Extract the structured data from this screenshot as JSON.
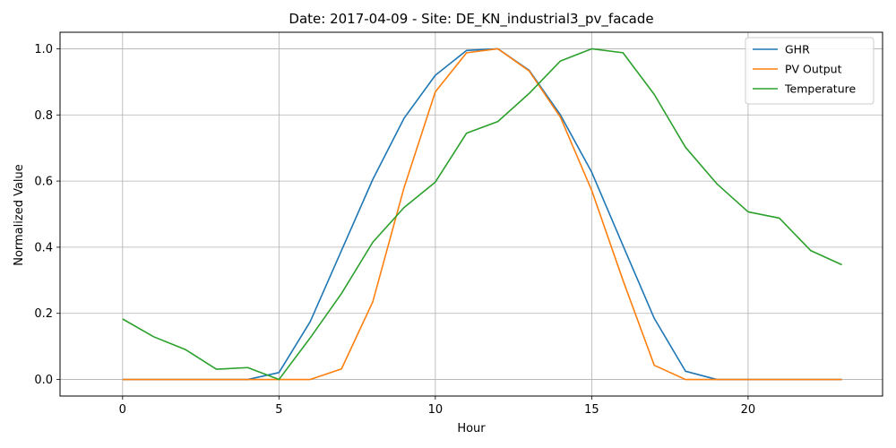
{
  "chart_data": {
    "type": "line",
    "title": "Date: 2017-04-09 - Site: DE_KN_industrial3_pv_facade",
    "xlabel": "Hour",
    "ylabel": "Normalized Value",
    "xlim": [
      -2,
      24.3
    ],
    "ylim": [
      -0.05,
      1.05
    ],
    "xticks": [
      0,
      5,
      10,
      15,
      20
    ],
    "yticks": [
      0.0,
      0.2,
      0.4,
      0.6,
      0.8,
      1.0
    ],
    "ytick_labels": [
      "0.0",
      "0.2",
      "0.4",
      "0.6",
      "0.8",
      "1.0"
    ],
    "grid": true,
    "legend_position": "top-right",
    "x": [
      0,
      1,
      2,
      3,
      4,
      5,
      6,
      7,
      8,
      9,
      10,
      11,
      12,
      13,
      14,
      15,
      16,
      17,
      18,
      19,
      20,
      21,
      22,
      23
    ],
    "series": [
      {
        "name": "GHR",
        "color": "#1f77b4",
        "values": [
          0,
          0,
          0,
          0,
          0,
          0.021,
          0.175,
          0.39,
          0.605,
          0.79,
          0.92,
          0.995,
          1.0,
          0.935,
          0.8,
          0.627,
          0.405,
          0.185,
          0.025,
          0,
          0,
          0,
          0,
          0
        ]
      },
      {
        "name": "PV Output",
        "color": "#ff7f0e",
        "values": [
          0,
          0,
          0,
          0,
          0,
          0,
          0,
          0.032,
          0.235,
          0.58,
          0.87,
          0.988,
          1.0,
          0.933,
          0.793,
          0.572,
          0.3,
          0.043,
          0,
          0,
          0,
          0,
          0,
          0
        ]
      },
      {
        "name": "Temperature",
        "color": "#2ca02c",
        "values": [
          0.183,
          0.129,
          0.091,
          0.031,
          0.036,
          0.0,
          0.126,
          0.26,
          0.415,
          0.52,
          0.597,
          0.745,
          0.78,
          0.865,
          0.963,
          1.0,
          0.988,
          0.862,
          0.702,
          0.592,
          0.507,
          0.488,
          0.39,
          0.347
        ]
      }
    ]
  }
}
